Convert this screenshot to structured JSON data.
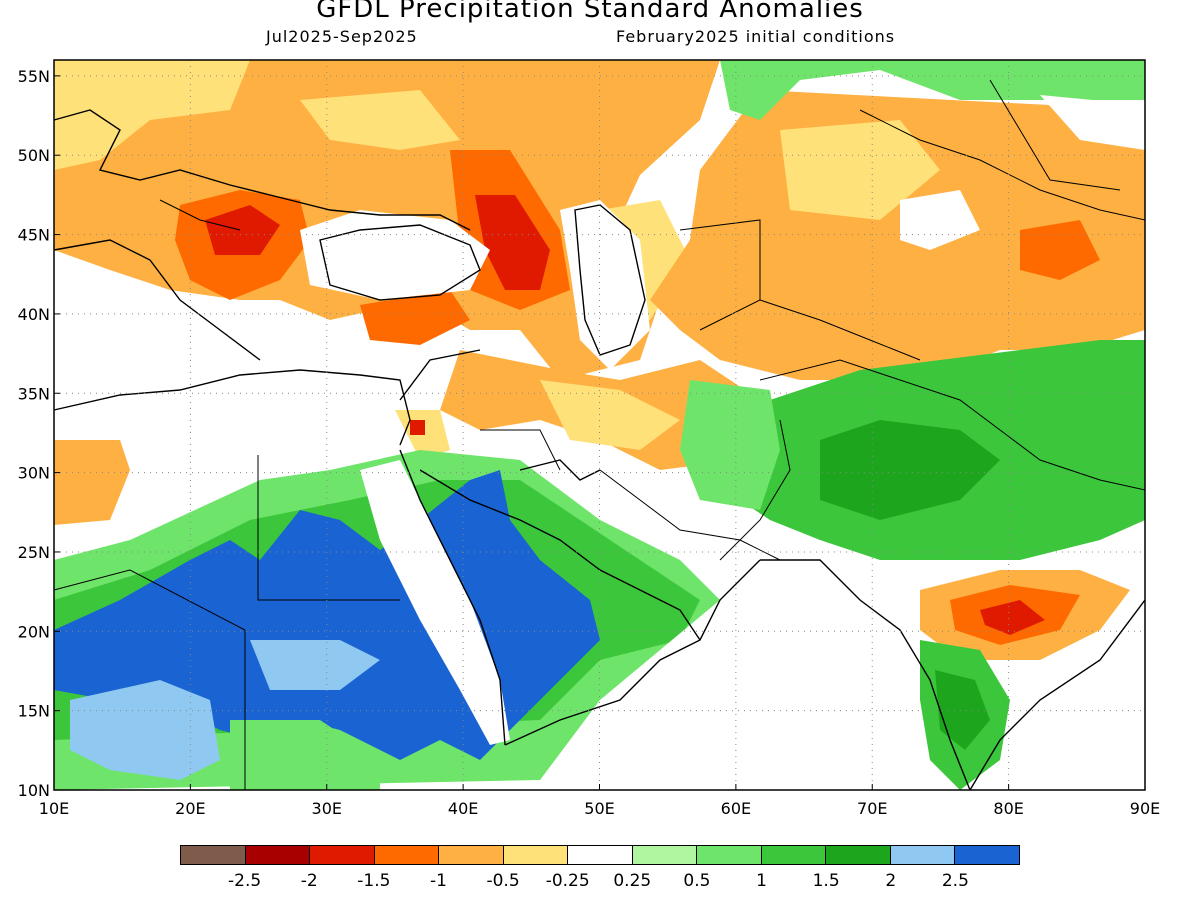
{
  "title": "GFDL Precipitation Standard Anomalies",
  "subtitle_left": "Jul2025-Sep2025",
  "subtitle_right": "February2025 initial conditions",
  "map": {
    "lon_range": [
      10,
      90
    ],
    "lat_range": [
      10,
      56
    ],
    "lon_ticks": [
      "10E",
      "20E",
      "30E",
      "40E",
      "50E",
      "60E",
      "70E",
      "80E",
      "90E"
    ],
    "lat_ticks": [
      "10N",
      "15N",
      "20N",
      "25N",
      "30N",
      "35N",
      "40N",
      "45N",
      "50N",
      "55N"
    ],
    "grid": "dotted"
  },
  "colorbar": {
    "colors": [
      "#7f5b4b",
      "#a80000",
      "#e01a00",
      "#ff6a00",
      "#ffb042",
      "#ffe17a",
      "#ffffff",
      "#b0f5a0",
      "#6ee56a",
      "#3cc63c",
      "#1ea51e",
      "#8fc8f0",
      "#1a63d2"
    ],
    "labels": [
      "-2.5",
      "-2",
      "-1.5",
      "-1",
      "-0.5",
      "-0.25",
      "0.25",
      "0.5",
      "1",
      "1.5",
      "2",
      "2.5"
    ]
  }
}
